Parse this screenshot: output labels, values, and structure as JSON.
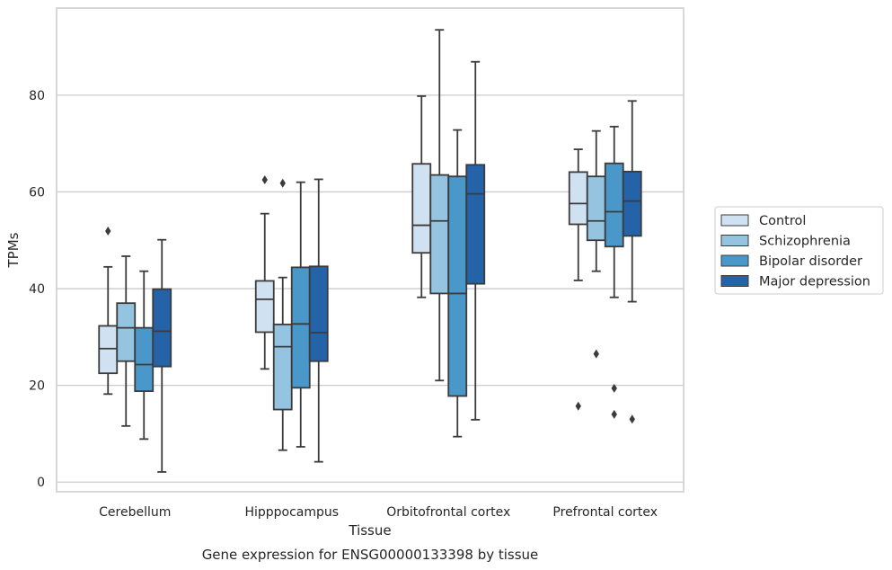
{
  "chart_data": {
    "type": "box",
    "title": "",
    "caption": "Gene expression for ENSG00000133398 by tissue",
    "xlabel": "Tissue",
    "ylabel": "TPMs",
    "ylim": [
      -2,
      98
    ],
    "yticks": [
      0,
      20,
      40,
      60,
      80
    ],
    "ytick_labels": [
      "0",
      "20",
      "40",
      "60",
      "80"
    ],
    "grid": "horizontal",
    "legend_position": "right",
    "categories": [
      "Cerebellum",
      "Hipppocampus",
      "Orbitofrontal cortex",
      "Prefrontal cortex"
    ],
    "series": [
      {
        "name": "Control",
        "color": "#d0e1f2",
        "boxes": [
          {
            "whislo": 18.2,
            "q1": 22.5,
            "med": 27.6,
            "q3": 32.3,
            "whishi": 44.5,
            "fliers": [
              51.9
            ]
          },
          {
            "whislo": 23.4,
            "q1": 31.0,
            "med": 37.8,
            "q3": 41.6,
            "whishi": 55.5,
            "fliers": [
              62.5
            ]
          },
          {
            "whislo": 38.2,
            "q1": 47.4,
            "med": 53.1,
            "q3": 65.8,
            "whishi": 79.8,
            "fliers": []
          },
          {
            "whislo": 41.7,
            "q1": 53.3,
            "med": 57.6,
            "q3": 64.1,
            "whishi": 68.8,
            "fliers": [
              15.7
            ]
          }
        ]
      },
      {
        "name": "Schizophrenia",
        "color": "#94c4df",
        "boxes": [
          {
            "whislo": 11.6,
            "q1": 25.0,
            "med": 31.9,
            "q3": 37.0,
            "whishi": 46.7,
            "fliers": []
          },
          {
            "whislo": 6.6,
            "q1": 15.0,
            "med": 28.0,
            "q3": 32.6,
            "whishi": 42.3,
            "fliers": [
              61.8
            ]
          },
          {
            "whislo": 21.0,
            "q1": 39.0,
            "med": 54.0,
            "q3": 63.5,
            "whishi": 93.5,
            "fliers": []
          },
          {
            "whislo": 43.6,
            "q1": 50.0,
            "med": 54.0,
            "q3": 63.2,
            "whishi": 72.6,
            "fliers": [
              26.5
            ]
          }
        ]
      },
      {
        "name": "Bipolar disorder",
        "color": "#4a98c9",
        "boxes": [
          {
            "whislo": 8.9,
            "q1": 18.8,
            "med": 24.3,
            "q3": 31.9,
            "whishi": 43.6,
            "fliers": []
          },
          {
            "whislo": 7.3,
            "q1": 19.5,
            "med": 32.7,
            "q3": 44.4,
            "whishi": 62.0,
            "fliers": []
          },
          {
            "whislo": 9.4,
            "q1": 17.8,
            "med": 39.0,
            "q3": 63.2,
            "whishi": 72.8,
            "fliers": []
          },
          {
            "whislo": 38.2,
            "q1": 48.7,
            "med": 55.9,
            "q3": 65.9,
            "whishi": 73.5,
            "fliers": [
              19.4,
              14.0
            ]
          }
        ]
      },
      {
        "name": "Major depression",
        "color": "#2563a8",
        "boxes": [
          {
            "whislo": 2.1,
            "q1": 23.9,
            "med": 31.2,
            "q3": 39.9,
            "whishi": 50.1,
            "fliers": []
          },
          {
            "whislo": 4.2,
            "q1": 25.0,
            "med": 30.9,
            "q3": 44.6,
            "whishi": 62.6,
            "fliers": []
          },
          {
            "whislo": 12.9,
            "q1": 41.0,
            "med": 59.6,
            "q3": 65.6,
            "whishi": 86.9,
            "fliers": []
          },
          {
            "whislo": 37.3,
            "q1": 50.9,
            "med": 58.1,
            "q3": 64.2,
            "whishi": 78.8,
            "fliers": [
              13.0
            ]
          }
        ]
      }
    ]
  }
}
